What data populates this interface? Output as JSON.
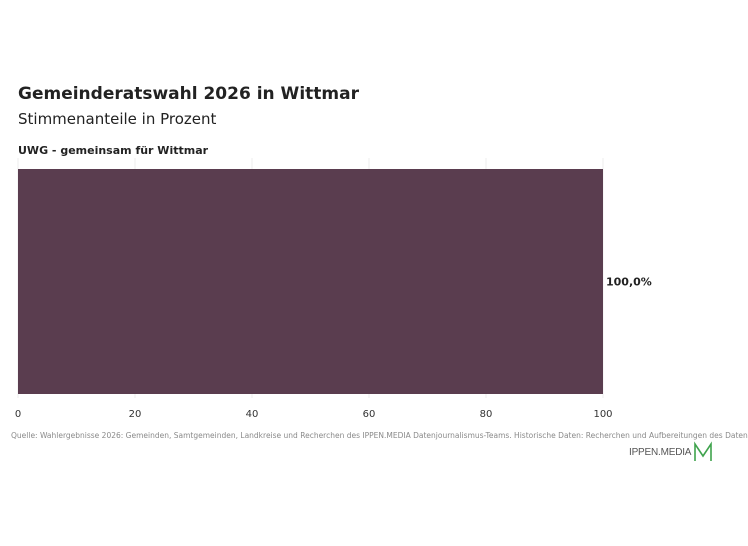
{
  "title": "Gemeinderatswahl 2026 in Wittmar",
  "subtitle": "Stimmenanteile in Prozent",
  "source": "Quelle: Wahlergebnisse 2026: Gemeinden, Samtgemeinden, Landkreise und Recherchen des IPPEN.MEDIA Datenjournalismus-Teams. Historische Daten: Recherchen und Aufbereitungen des Daten",
  "logo_text": "IPPEN.MEDIA",
  "colors": {
    "bar": "#5a3d4f",
    "logo_accent": "#3fa34d",
    "grid": "#eeeeee"
  },
  "chart_data": {
    "type": "bar",
    "orientation": "horizontal",
    "categories": [
      "UWG - gemeinsam für Wittmar"
    ],
    "values": [
      100.0
    ],
    "value_labels": [
      "100,0%"
    ],
    "xlim": [
      0,
      100
    ],
    "xticks": [
      0,
      20,
      40,
      60,
      80,
      100
    ],
    "grid": true
  }
}
